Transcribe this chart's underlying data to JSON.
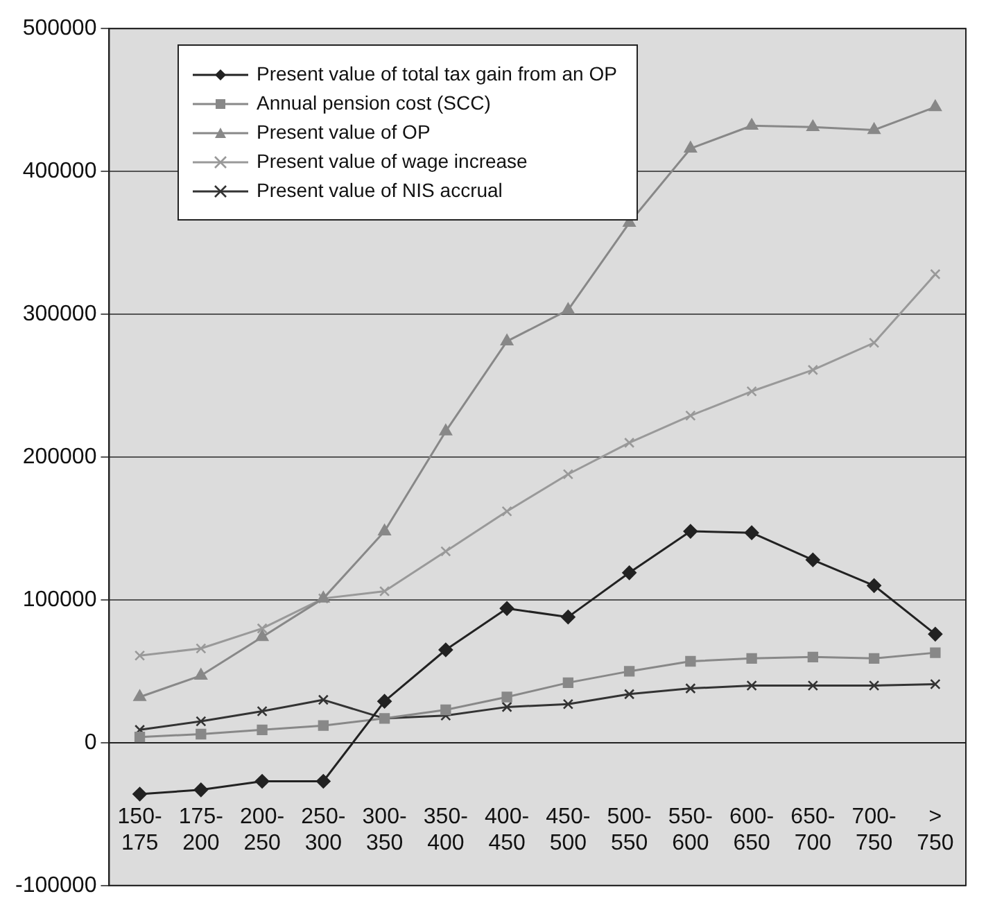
{
  "chart_data": {
    "type": "line",
    "categories": [
      "150-175",
      "175-200",
      "200-250",
      "250-300",
      "300-350",
      "350-400",
      "400-450",
      "450-500",
      "500-550",
      "550-600",
      "600-650",
      "650-700",
      "700-750",
      "> 750"
    ],
    "series": [
      {
        "name": "Present value of total tax gain from an OP",
        "color": "#222222",
        "marker": "diamond",
        "values": [
          -36000,
          -33000,
          -27000,
          -27000,
          29000,
          65000,
          94000,
          88000,
          119000,
          148000,
          147000,
          128000,
          110000,
          76000
        ]
      },
      {
        "name": "Annual pension cost (SCC)",
        "color": "#888888",
        "marker": "square",
        "values": [
          4000,
          6000,
          9000,
          12000,
          17000,
          23000,
          32000,
          42000,
          50000,
          57000,
          59000,
          60000,
          59000,
          63000
        ]
      },
      {
        "name": "Present value of OP",
        "color": "#888888",
        "marker": "triangle",
        "values": [
          32000,
          47000,
          74000,
          101000,
          148000,
          218000,
          281000,
          303000,
          364000,
          416000,
          432000,
          431000,
          429000,
          445000
        ]
      },
      {
        "name": "Present value of wage increase",
        "color": "#999999",
        "marker": "cross",
        "values": [
          61000,
          66000,
          80000,
          101000,
          106000,
          134000,
          162000,
          188000,
          210000,
          229000,
          246000,
          261000,
          280000,
          328000
        ]
      },
      {
        "name": "Present value of NIS accrual",
        "color": "#333333",
        "marker": "cross",
        "values": [
          9000,
          15000,
          22000,
          30000,
          17000,
          19000,
          25000,
          27000,
          34000,
          38000,
          40000,
          40000,
          40000,
          41000
        ]
      }
    ],
    "ylim": [
      -100000,
      500000
    ],
    "yticks": [
      -100000,
      0,
      100000,
      200000,
      300000,
      400000,
      500000
    ],
    "grid": "y",
    "legend": "top left",
    "line_style": "solid"
  }
}
